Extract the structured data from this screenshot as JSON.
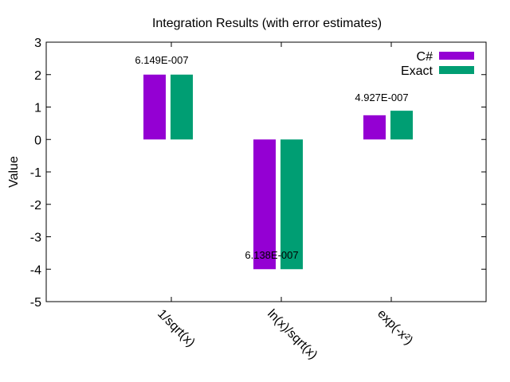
{
  "chart_data": {
    "type": "bar",
    "title": "Integration Results (with error estimates)",
    "xlabel": "",
    "ylabel": "Value",
    "ylim": [
      -5,
      3
    ],
    "yticks": [
      -5,
      -4,
      -3,
      -2,
      -1,
      0,
      1,
      2,
      3
    ],
    "grid": false,
    "legend_position": "top-right",
    "categories": [
      "1/sqrt(x)",
      "ln(x)/sqrt(x)",
      "exp(-x²)"
    ],
    "series": [
      {
        "name": "C#",
        "color": "#9400d3",
        "values": [
          2.0,
          -4.0,
          0.7468
        ]
      },
      {
        "name": "Exact",
        "color": "#009e73",
        "values": [
          2.0,
          -4.0,
          0.8862
        ]
      }
    ],
    "annotations": [
      "6.149E-007",
      "6.138E-007",
      "4.927E-007"
    ]
  }
}
